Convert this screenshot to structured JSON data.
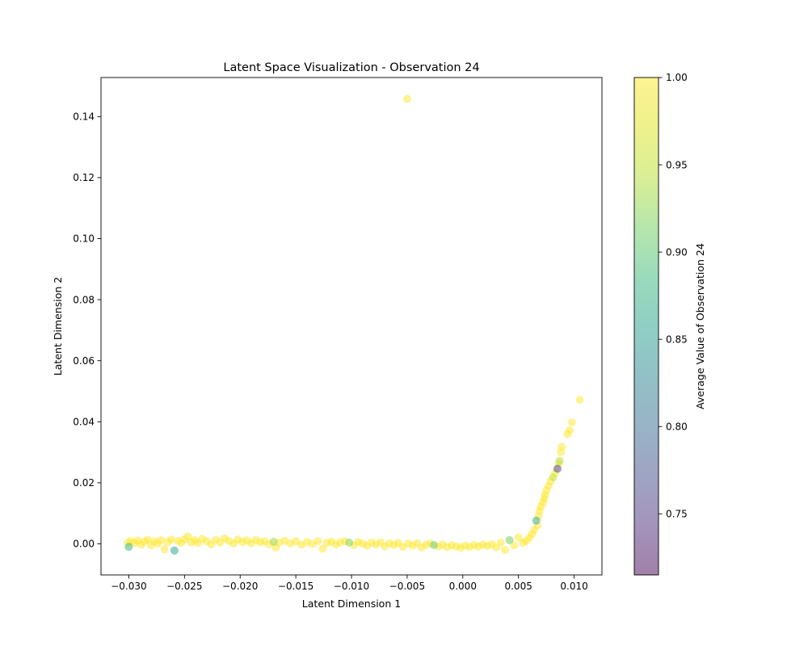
{
  "chart_data": {
    "type": "scatter",
    "title": "Latent Space Visualization - Observation 24",
    "xlabel": "Latent Dimension 1",
    "ylabel": "Latent Dimension 2",
    "xlim": [
      -0.0325,
      0.0125
    ],
    "ylim": [
      -0.0102,
      0.1528
    ],
    "xticks": [
      -0.03,
      -0.025,
      -0.02,
      -0.015,
      -0.01,
      -0.005,
      0.0,
      0.005,
      0.01
    ],
    "xtick_labels": [
      "−0.030",
      "−0.025",
      "−0.020",
      "−0.015",
      "−0.010",
      "−0.005",
      "0.000",
      "0.005",
      "0.010"
    ],
    "yticks": [
      0.0,
      0.02,
      0.04,
      0.06,
      0.08,
      0.1,
      0.12,
      0.14
    ],
    "ytick_labels": [
      "0.00",
      "0.02",
      "0.04",
      "0.06",
      "0.08",
      "0.10",
      "0.12",
      "0.14"
    ],
    "grid": false,
    "colorbar": {
      "label": "Average Value of Observation 24",
      "range": [
        0.715,
        1.0
      ],
      "ticks": [
        0.75,
        0.8,
        0.85,
        0.9,
        0.95,
        1.0
      ],
      "tick_labels": [
        "0.75",
        "0.80",
        "0.85",
        "0.90",
        "0.95",
        "1.00"
      ],
      "colormap": "viridis",
      "alpha": 0.5
    },
    "points": [
      {
        "x": -0.0301,
        "y": 0.0004,
        "c": 1.0
      },
      {
        "x": -0.0298,
        "y": 0.0009,
        "c": 1.0
      },
      {
        "x": -0.03,
        "y": -0.001,
        "c": 0.88
      },
      {
        "x": -0.0295,
        "y": 0.0002,
        "c": 1.0
      },
      {
        "x": -0.0292,
        "y": 0.0011,
        "c": 1.0
      },
      {
        "x": -0.0289,
        "y": -0.0003,
        "c": 1.0
      },
      {
        "x": -0.0286,
        "y": 0.0007,
        "c": 1.0
      },
      {
        "x": -0.0283,
        "y": 0.0013,
        "c": 1.0
      },
      {
        "x": -0.028,
        "y": -0.0005,
        "c": 1.0
      },
      {
        "x": -0.0277,
        "y": 0.0008,
        "c": 1.0
      },
      {
        "x": -0.0274,
        "y": 0.0001,
        "c": 1.0
      },
      {
        "x": -0.0271,
        "y": 0.0012,
        "c": 1.0
      },
      {
        "x": -0.0268,
        "y": -0.0018,
        "c": 1.0
      },
      {
        "x": -0.0265,
        "y": 0.0006,
        "c": 1.0
      },
      {
        "x": -0.0262,
        "y": 0.0014,
        "c": 1.0
      },
      {
        "x": -0.0259,
        "y": -0.0022,
        "c": 0.86
      },
      {
        "x": -0.0256,
        "y": 0.001,
        "c": 1.0
      },
      {
        "x": -0.0253,
        "y": 0.0003,
        "c": 1.0
      },
      {
        "x": -0.025,
        "y": 0.0015,
        "c": 1.0
      },
      {
        "x": -0.0247,
        "y": 0.0024,
        "c": 1.0
      },
      {
        "x": -0.0244,
        "y": 0.0005,
        "c": 1.0
      },
      {
        "x": -0.0241,
        "y": 0.0012,
        "c": 1.0
      },
      {
        "x": -0.0238,
        "y": 0.0002,
        "c": 1.0
      },
      {
        "x": -0.0234,
        "y": 0.0016,
        "c": 1.0
      },
      {
        "x": -0.023,
        "y": 0.0008,
        "c": 1.0
      },
      {
        "x": -0.0226,
        "y": -0.0002,
        "c": 1.0
      },
      {
        "x": -0.0222,
        "y": 0.0013,
        "c": 1.0
      },
      {
        "x": -0.0218,
        "y": 0.0004,
        "c": 1.0
      },
      {
        "x": -0.0214,
        "y": 0.0018,
        "c": 1.0
      },
      {
        "x": -0.021,
        "y": 0.0009,
        "c": 1.0
      },
      {
        "x": -0.0206,
        "y": 0.0001,
        "c": 1.0
      },
      {
        "x": -0.0202,
        "y": 0.0014,
        "c": 1.0
      },
      {
        "x": -0.0198,
        "y": 0.0006,
        "c": 1.0
      },
      {
        "x": -0.0194,
        "y": 0.0011,
        "c": 1.0
      },
      {
        "x": -0.019,
        "y": 0.0002,
        "c": 1.0
      },
      {
        "x": -0.0186,
        "y": 0.0012,
        "c": 1.0
      },
      {
        "x": -0.0182,
        "y": 0.0005,
        "c": 1.0
      },
      {
        "x": -0.0178,
        "y": 0.0009,
        "c": 1.0
      },
      {
        "x": -0.0174,
        "y": -0.0001,
        "c": 1.0
      },
      {
        "x": -0.017,
        "y": 0.0007,
        "c": 0.93
      },
      {
        "x": -0.0168,
        "y": -0.0012,
        "c": 1.0
      },
      {
        "x": -0.0165,
        "y": 0.0004,
        "c": 1.0
      },
      {
        "x": -0.016,
        "y": 0.001,
        "c": 1.0
      },
      {
        "x": -0.0155,
        "y": 0.0001,
        "c": 1.0
      },
      {
        "x": -0.015,
        "y": 0.0008,
        "c": 1.0
      },
      {
        "x": -0.0145,
        "y": -0.0003,
        "c": 1.0
      },
      {
        "x": -0.014,
        "y": 0.0006,
        "c": 1.0
      },
      {
        "x": -0.0135,
        "y": 0.0,
        "c": 1.0
      },
      {
        "x": -0.013,
        "y": 0.0009,
        "c": 1.0
      },
      {
        "x": -0.0126,
        "y": -0.0016,
        "c": 1.0
      },
      {
        "x": -0.0122,
        "y": 0.0003,
        "c": 1.0
      },
      {
        "x": -0.0118,
        "y": 0.0007,
        "c": 1.0
      },
      {
        "x": -0.0114,
        "y": -0.0002,
        "c": 1.0
      },
      {
        "x": -0.011,
        "y": 0.0005,
        "c": 1.0
      },
      {
        "x": -0.0106,
        "y": 0.0008,
        "c": 1.0
      },
      {
        "x": -0.0102,
        "y": 0.0004,
        "c": 0.92
      },
      {
        "x": -0.0098,
        "y": -0.0004,
        "c": 1.0
      },
      {
        "x": -0.0094,
        "y": 0.0006,
        "c": 1.0
      },
      {
        "x": -0.009,
        "y": 0.0001,
        "c": 1.0
      },
      {
        "x": -0.0086,
        "y": -0.0006,
        "c": 1.0
      },
      {
        "x": -0.0082,
        "y": 0.0004,
        "c": 1.0
      },
      {
        "x": -0.0078,
        "y": -0.0002,
        "c": 1.0
      },
      {
        "x": -0.0074,
        "y": 0.0005,
        "c": 1.0
      },
      {
        "x": -0.007,
        "y": -0.0008,
        "c": 1.0
      },
      {
        "x": -0.0066,
        "y": 0.0002,
        "c": 1.0
      },
      {
        "x": -0.0062,
        "y": -0.0004,
        "c": 1.0
      },
      {
        "x": -0.0058,
        "y": 0.0003,
        "c": 1.0
      },
      {
        "x": -0.0054,
        "y": -0.001,
        "c": 1.0
      },
      {
        "x": -0.005,
        "y": 0.1458,
        "c": 1.0
      },
      {
        "x": -0.0049,
        "y": 0.0001,
        "c": 1.0
      },
      {
        "x": -0.0045,
        "y": -0.0006,
        "c": 1.0
      },
      {
        "x": -0.0041,
        "y": 0.0002,
        "c": 1.0
      },
      {
        "x": -0.0037,
        "y": -0.0012,
        "c": 1.0
      },
      {
        "x": -0.0033,
        "y": -0.0003,
        "c": 1.0
      },
      {
        "x": -0.0029,
        "y": 0.0001,
        "c": 1.0
      },
      {
        "x": -0.0026,
        "y": -0.0004,
        "c": 0.91
      },
      {
        "x": -0.0022,
        "y": -0.0009,
        "c": 1.0
      },
      {
        "x": -0.0018,
        "y": -0.0002,
        "c": 1.0
      },
      {
        "x": -0.0014,
        "y": -0.0011,
        "c": 1.0
      },
      {
        "x": -0.001,
        "y": -0.0005,
        "c": 1.0
      },
      {
        "x": -0.0006,
        "y": -0.0008,
        "c": 1.0
      },
      {
        "x": -0.0002,
        "y": -0.0013,
        "c": 1.0
      },
      {
        "x": 0.0002,
        "y": -0.0006,
        "c": 1.0
      },
      {
        "x": 0.0006,
        "y": -0.001,
        "c": 1.0
      },
      {
        "x": 0.001,
        "y": -0.0004,
        "c": 1.0
      },
      {
        "x": 0.0014,
        "y": -0.0009,
        "c": 1.0
      },
      {
        "x": 0.0018,
        "y": -0.0003,
        "c": 1.0
      },
      {
        "x": 0.0022,
        "y": -0.0007,
        "c": 1.0
      },
      {
        "x": 0.0026,
        "y": -0.0001,
        "c": 1.0
      },
      {
        "x": 0.003,
        "y": -0.0012,
        "c": 1.0
      },
      {
        "x": 0.0034,
        "y": 0.0004,
        "c": 1.0
      },
      {
        "x": 0.0038,
        "y": -0.002,
        "c": 1.0
      },
      {
        "x": 0.0042,
        "y": 0.0012,
        "c": 0.91
      },
      {
        "x": 0.0046,
        "y": -0.0005,
        "c": 1.0
      },
      {
        "x": 0.005,
        "y": 0.0021,
        "c": 1.0
      },
      {
        "x": 0.0054,
        "y": 0.0003,
        "c": 1.0
      },
      {
        "x": 0.0057,
        "y": 0.001,
        "c": 1.0
      },
      {
        "x": 0.006,
        "y": 0.002,
        "c": 1.0
      },
      {
        "x": 0.0062,
        "y": 0.0032,
        "c": 1.0
      },
      {
        "x": 0.0064,
        "y": 0.0045,
        "c": 1.0
      },
      {
        "x": 0.0066,
        "y": 0.0076,
        "c": 0.87
      },
      {
        "x": 0.0067,
        "y": 0.006,
        "c": 1.0
      },
      {
        "x": 0.0068,
        "y": 0.009,
        "c": 1.0
      },
      {
        "x": 0.0069,
        "y": 0.0108,
        "c": 1.0
      },
      {
        "x": 0.007,
        "y": 0.0122,
        "c": 1.0
      },
      {
        "x": 0.0072,
        "y": 0.0135,
        "c": 1.0
      },
      {
        "x": 0.0073,
        "y": 0.0148,
        "c": 1.0
      },
      {
        "x": 0.0074,
        "y": 0.016,
        "c": 1.0
      },
      {
        "x": 0.0075,
        "y": 0.0175,
        "c": 1.0
      },
      {
        "x": 0.0077,
        "y": 0.019,
        "c": 1.0
      },
      {
        "x": 0.0079,
        "y": 0.0205,
        "c": 1.0
      },
      {
        "x": 0.0081,
        "y": 0.0218,
        "c": 0.95
      },
      {
        "x": 0.0083,
        "y": 0.0232,
        "c": 1.0
      },
      {
        "x": 0.0085,
        "y": 0.0246,
        "c": 0.76
      },
      {
        "x": 0.0086,
        "y": 0.0262,
        "c": 1.0
      },
      {
        "x": 0.0087,
        "y": 0.0272,
        "c": 0.94
      },
      {
        "x": 0.0088,
        "y": 0.03,
        "c": 1.0
      },
      {
        "x": 0.0089,
        "y": 0.0318,
        "c": 1.0
      },
      {
        "x": 0.0094,
        "y": 0.036,
        "c": 1.0
      },
      {
        "x": 0.0096,
        "y": 0.0372,
        "c": 1.0
      },
      {
        "x": 0.0098,
        "y": 0.0398,
        "c": 1.0
      },
      {
        "x": 0.0105,
        "y": 0.0472,
        "c": 1.0
      }
    ]
  }
}
